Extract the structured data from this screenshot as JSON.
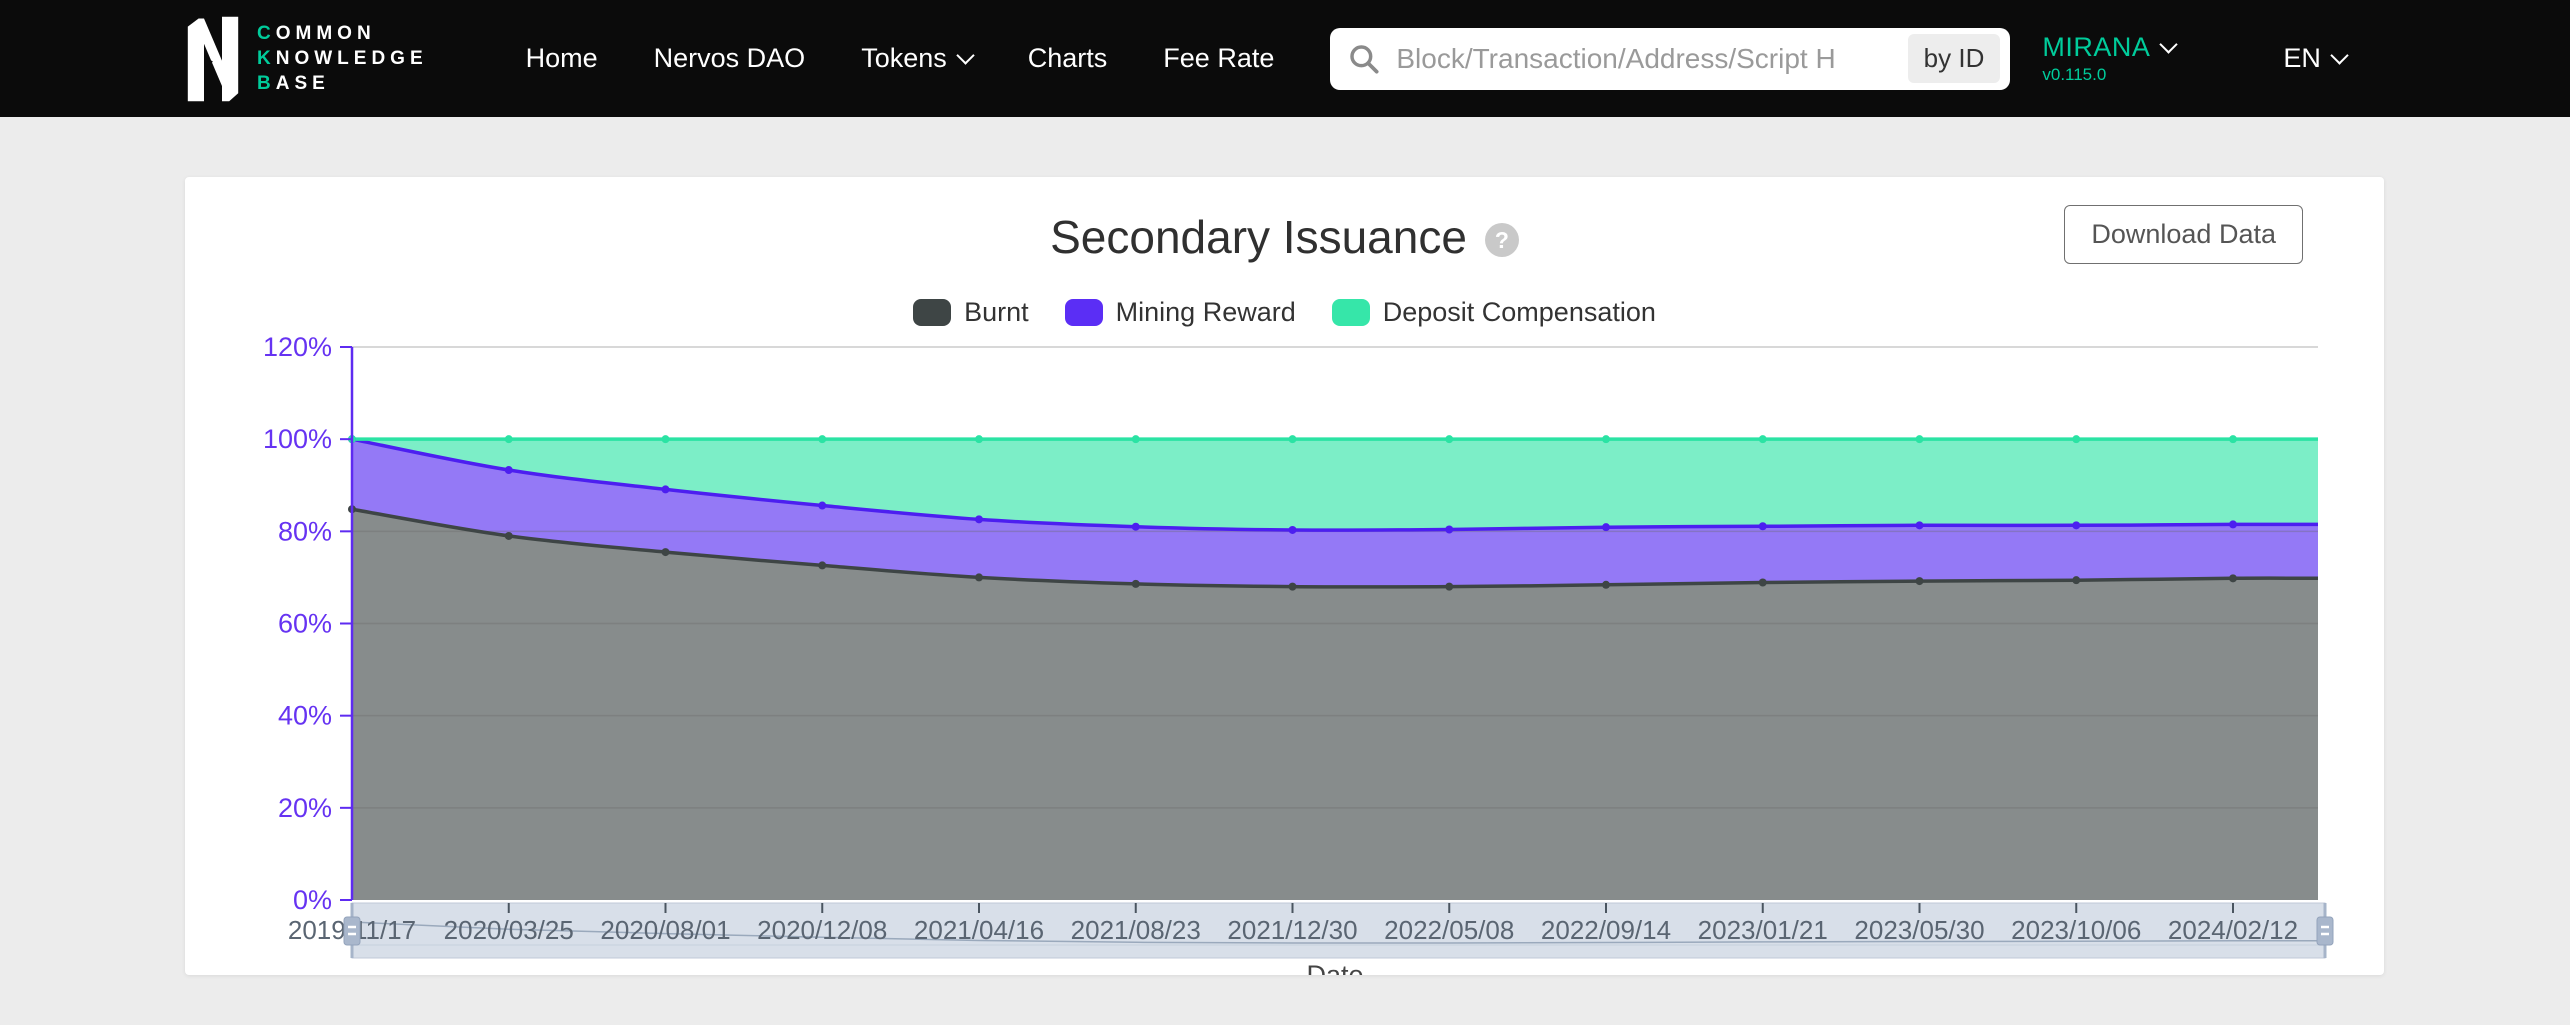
{
  "header": {
    "logo": {
      "lines": [
        {
          "accent": "C",
          "rest": "OMMON"
        },
        {
          "accent": "K",
          "rest": "NOWLEDGE"
        },
        {
          "accent": "B",
          "rest": "ASE"
        }
      ]
    },
    "nav": {
      "home": "Home",
      "nervos_dao": "Nervos DAO",
      "tokens": "Tokens",
      "charts": "Charts",
      "fee_rate": "Fee Rate"
    },
    "search": {
      "placeholder": "Block/Transaction/Address/Script H",
      "by_id_label": "by ID"
    },
    "network": {
      "name": "MIRANA",
      "version": "v0.115.0"
    },
    "language": "EN",
    "colors": {
      "brand": "#00CC9B",
      "bg": "#0b0b0b"
    }
  },
  "chart_card": {
    "title": "Secondary Issuance",
    "help_glyph": "?",
    "download_button": "Download Data",
    "legend": [
      {
        "label": "Burnt",
        "color": "#3E4545"
      },
      {
        "label": "Mining Reward",
        "color": "#5B2EF5"
      },
      {
        "label": "Deposit Compensation",
        "color": "#36E6A9"
      }
    ]
  },
  "chart_data": {
    "type": "area",
    "stacked": true,
    "unit": "%",
    "title": "Secondary Issuance",
    "xlabel": "Date",
    "x": [
      "2019/11/17",
      "2020/03/25",
      "2020/08/01",
      "2020/12/08",
      "2021/04/16",
      "2021/08/23",
      "2021/12/30",
      "2022/05/08",
      "2022/09/14",
      "2023/01/21",
      "2023/05/30",
      "2023/10/06",
      "2024/02/12"
    ],
    "series": [
      {
        "name": "Burnt",
        "color": "#3E4545",
        "fill": "rgba(62,69,69,0.62)",
        "values": [
          84.8,
          79.0,
          75.5,
          72.6,
          70.0,
          68.6,
          68.0,
          68.0,
          68.4,
          68.9,
          69.2,
          69.4,
          69.8
        ]
      },
      {
        "name": "Mining Reward",
        "color": "#4C1FF0",
        "fill": "rgba(76,31,240,0.60)",
        "values": [
          15.2,
          14.3,
          13.6,
          13.0,
          12.6,
          12.4,
          12.3,
          12.4,
          12.5,
          12.2,
          12.1,
          11.9,
          11.7
        ]
      },
      {
        "name": "Deposit Compensation",
        "color": "#2BE3A4",
        "fill": "rgba(43,227,164,0.62)",
        "values": [
          0.0,
          6.7,
          10.9,
          14.4,
          17.4,
          19.0,
          19.7,
          19.6,
          19.1,
          18.9,
          18.7,
          18.7,
          18.5
        ]
      }
    ],
    "ylim": [
      0,
      120
    ],
    "yticks": [
      "0%",
      "20%",
      "40%",
      "60%",
      "80%",
      "100%",
      "120%"
    ],
    "axis_color": "#5E2BF1",
    "tick_label_color": "#6633F2",
    "x_label_color": "#5A6572",
    "grid": true,
    "legend_position": "top",
    "datazoom": {
      "present": true,
      "range_start_label": "2019/11/17",
      "range_end_label": "2024/02/12"
    }
  }
}
